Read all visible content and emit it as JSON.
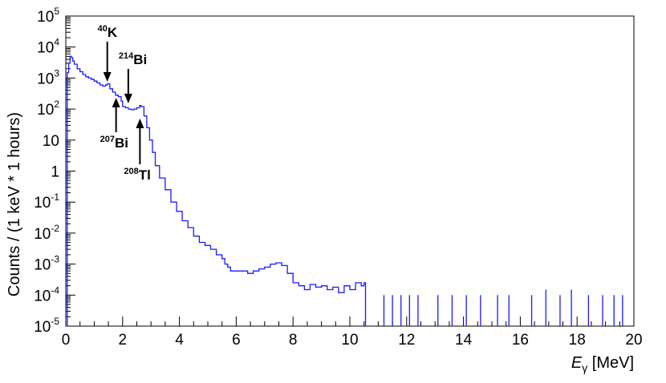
{
  "chart_data": {
    "type": "line",
    "style": "histogram-step",
    "xlabel": "E",
    "xlabel_subscript": "γ",
    "xlabel_unit": " [MeV]",
    "ylabel": "Counts / (1 keV * 1 hours)",
    "xlim": [
      0,
      20
    ],
    "ylim": [
      1e-05,
      100000.0
    ],
    "yscale": "log",
    "grid": false,
    "legend": "none",
    "x_ticks": [
      "0",
      "2",
      "4",
      "6",
      "8",
      "10",
      "12",
      "14",
      "16",
      "18",
      "20"
    ],
    "y_ticks": [
      {
        "value": 1e-05,
        "base": "10",
        "exp": "-5"
      },
      {
        "value": 0.0001,
        "base": "10",
        "exp": "-4"
      },
      {
        "value": 0.001,
        "base": "10",
        "exp": "-3"
      },
      {
        "value": 0.01,
        "base": "10",
        "exp": "-2"
      },
      {
        "value": 0.1,
        "base": "10",
        "exp": "-1"
      },
      {
        "value": 1,
        "base": "1",
        "exp": ""
      },
      {
        "value": 10,
        "base": "10",
        "exp": ""
      },
      {
        "value": 100,
        "base": "10",
        "exp": "2"
      },
      {
        "value": 1000,
        "base": "10",
        "exp": "3"
      },
      {
        "value": 10000,
        "base": "10",
        "exp": "4"
      },
      {
        "value": 100000,
        "base": "10",
        "exp": "5"
      }
    ],
    "line_color": "#1a1aff",
    "series": [
      {
        "x": [
          0,
          0.05,
          0.1,
          0.15,
          0.2,
          0.25,
          0.3,
          0.4,
          0.5,
          0.6,
          0.7,
          0.8,
          0.9,
          1.0,
          1.1,
          1.2,
          1.3,
          1.4,
          1.46,
          1.55,
          1.65,
          1.75,
          1.85,
          1.95,
          2.0,
          2.1,
          2.2,
          2.3,
          2.4,
          2.5,
          2.6,
          2.65,
          2.75,
          2.85,
          2.95,
          3.05,
          3.15,
          3.3,
          3.5,
          3.7,
          3.9,
          4.1,
          4.3,
          4.5,
          4.7,
          4.9,
          5.1,
          5.3,
          5.5,
          5.6,
          5.7,
          5.8,
          6.0,
          6.2,
          6.4,
          6.6,
          6.8,
          7.0,
          7.2,
          7.4,
          7.6,
          7.8,
          8.0,
          8.2,
          8.4,
          8.6,
          8.8,
          9.0,
          9.2,
          9.4,
          9.6,
          9.8,
          10.0,
          10.2,
          10.4,
          10.5,
          10.55
        ],
        "y": [
          1e-05,
          1500,
          3000,
          5000,
          4500,
          3500,
          2800,
          2000,
          1600,
          1300,
          1100,
          1000,
          900,
          800,
          700,
          600,
          550,
          600,
          650,
          450,
          350,
          280,
          250,
          180,
          120,
          110,
          100,
          95,
          100,
          110,
          130,
          120,
          60,
          25,
          10,
          4,
          1.5,
          0.6,
          0.25,
          0.1,
          0.05,
          0.025,
          0.015,
          0.008,
          0.005,
          0.004,
          0.003,
          0.002,
          0.0015,
          0.001,
          0.0008,
          0.0006,
          0.0006,
          0.0006,
          0.0005,
          0.0006,
          0.0007,
          0.0008,
          0.001,
          0.0011,
          0.0009,
          0.0005,
          0.00025,
          0.0002,
          0.00015,
          0.00022,
          0.00018,
          0.0002,
          0.00015,
          0.00018,
          0.00012,
          0.0002,
          0.00015,
          0.00025,
          0.0002,
          0.00025,
          1e-05
        ]
      }
    ],
    "sparse_bins_x": [
      11.2,
      11.5,
      11.8,
      12.1,
      12.4,
      13.1,
      13.6,
      14.1,
      14.6,
      15.2,
      15.6,
      16.4,
      16.9,
      17.4,
      17.8,
      18.4,
      18.9,
      19.3,
      19.6
    ],
    "sparse_bins_y": [
      0.0001,
      0.0001,
      0.0001,
      0.0001,
      0.0001,
      0.0001,
      0.0001,
      0.0001,
      0.0001,
      0.0001,
      0.0001,
      0.0001,
      0.00015,
      0.0001,
      0.00015,
      0.0001,
      0.0001,
      0.0001,
      0.0001
    ],
    "annotations": [
      {
        "mass": "40",
        "symbol": "K",
        "x": 1.46,
        "direction": "down",
        "label_pos": "above"
      },
      {
        "mass": "214",
        "symbol": "Bi",
        "x": 2.2,
        "direction": "down",
        "label_pos": "above"
      },
      {
        "mass": "207",
        "symbol": "Bi",
        "x": 1.77,
        "direction": "up",
        "label_pos": "below"
      },
      {
        "mass": "208",
        "symbol": "Tl",
        "x": 2.61,
        "direction": "up",
        "label_pos": "below"
      }
    ]
  }
}
